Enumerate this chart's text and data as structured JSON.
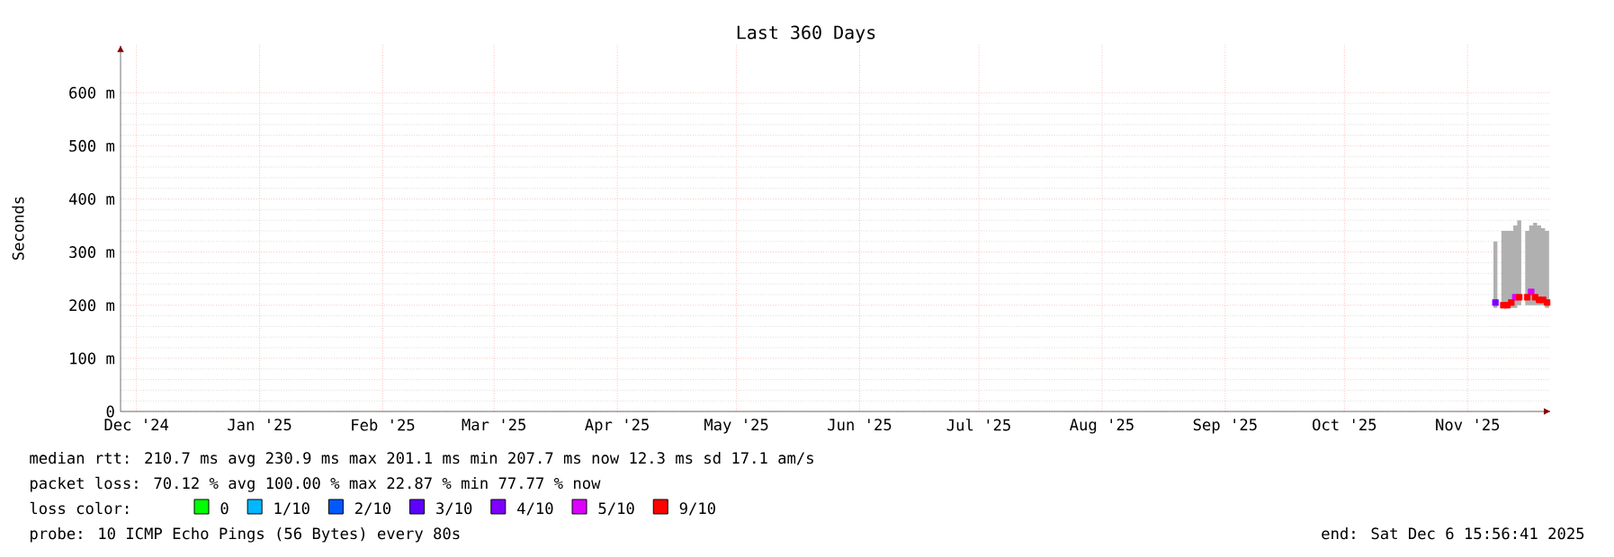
{
  "chart_data": {
    "type": "line",
    "title": "Last 360 Days",
    "ylabel": "Seconds",
    "x": [
      "2025-11-22",
      "2025-11-23",
      "2025-11-24",
      "2025-11-25",
      "2025-11-26",
      "2025-11-27",
      "2025-11-28",
      "2025-11-29",
      "2025-11-30",
      "2025-12-01",
      "2025-12-02",
      "2025-12-03",
      "2025-12-04",
      "2025-12-05"
    ],
    "xlim": [
      "2024-12-11",
      "2025-12-06"
    ],
    "xticks": [
      {
        "value": "2024-12-15",
        "label": "Dec '24"
      },
      {
        "value": "2025-01-15",
        "label": "Jan '25"
      },
      {
        "value": "2025-02-15",
        "label": "Feb '25"
      },
      {
        "value": "2025-03-15",
        "label": "Mar '25"
      },
      {
        "value": "2025-04-15",
        "label": "Apr '25"
      },
      {
        "value": "2025-05-15",
        "label": "May '25"
      },
      {
        "value": "2025-06-15",
        "label": "Jun '25"
      },
      {
        "value": "2025-07-15",
        "label": "Jul '25"
      },
      {
        "value": "2025-08-15",
        "label": "Aug '25"
      },
      {
        "value": "2025-09-15",
        "label": "Sep '25"
      },
      {
        "value": "2025-10-15",
        "label": "Oct '25"
      },
      {
        "value": "2025-11-15",
        "label": "Nov '25"
      }
    ],
    "ylim": [
      0,
      690
    ],
    "yticks": [
      0,
      {
        "value": 100,
        "label": "100 m"
      },
      {
        "value": 200,
        "label": "200 m"
      },
      {
        "value": 300,
        "label": "300 m"
      },
      {
        "value": 400,
        "label": "400 m"
      },
      {
        "value": 500,
        "label": "500 m"
      },
      {
        "value": 600,
        "label": "600 m"
      }
    ],
    "grid": true,
    "legend": "bottom",
    "legend_title": "loss color:",
    "marker": "square",
    "series": [
      {
        "color": "#b0b0b0",
        "values": [
          null,
          null,
          null,
          null,
          null,
          null,
          null,
          null,
          null,
          null,
          null,
          null,
          null,
          null
        ],
        "lower": [
          195,
          null,
          195,
          195,
          195,
          195,
          200,
          null,
          200,
          200,
          200,
          200,
          200,
          195
        ],
        "upper": [
          320,
          null,
          340,
          340,
          340,
          350,
          360,
          null,
          340,
          350,
          355,
          350,
          345,
          340
        ]
      },
      {
        "type": "scatter",
        "name": "0",
        "color": "#00ff00",
        "values": [
          null,
          null,
          null,
          null,
          null,
          null,
          null,
          null,
          null,
          null,
          null,
          null,
          null,
          null
        ]
      },
      {
        "type": "scatter",
        "name": "1/10",
        "color": "#00b8ff",
        "values": [
          null,
          null,
          null,
          null,
          null,
          null,
          null,
          null,
          null,
          null,
          null,
          null,
          null,
          null
        ]
      },
      {
        "type": "scatter",
        "name": "2/10",
        "color": "#0059ff",
        "values": [
          null,
          null,
          null,
          null,
          null,
          null,
          null,
          null,
          null,
          null,
          null,
          null,
          null,
          null
        ]
      },
      {
        "type": "scatter",
        "name": "3/10",
        "color": "#5e00ff",
        "values": [
          null,
          null,
          null,
          null,
          null,
          null,
          null,
          null,
          null,
          null,
          null,
          null,
          null,
          null
        ]
      },
      {
        "type": "scatter",
        "name": "4/10",
        "color": "#7e00ff",
        "values": [
          205,
          null,
          null,
          null,
          null,
          null,
          null,
          null,
          null,
          null,
          null,
          null,
          null,
          null
        ]
      },
      {
        "type": "scatter",
        "name": "5/10",
        "color": "#dd00ff",
        "values": [
          null,
          null,
          null,
          null,
          null,
          215,
          null,
          null,
          null,
          225,
          null,
          null,
          null,
          null
        ]
      },
      {
        "type": "scatter",
        "name": "9/10",
        "color": "#ff0000",
        "values": [
          null,
          null,
          200,
          200,
          205,
          null,
          215,
          null,
          215,
          null,
          215,
          210,
          210,
          205
        ]
      }
    ],
    "annotations": [
      "median rtt: 210.7 ms avg 230.9 ms max 201.1 ms min 207.7 ms now 12.3 ms sd 17.1 am/s",
      "packet loss: 70.12 % avg 100.00 % max 22.87 % min 77.77 % now",
      "probe: 10 ICMP Echo Pings (56 Bytes) every 80s",
      "end: Sat Dec 6 15:56:41 2025"
    ]
  }
}
